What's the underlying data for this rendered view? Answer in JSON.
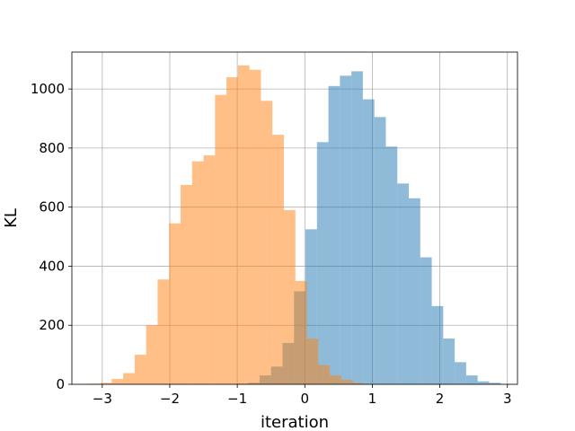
{
  "chart_data": {
    "type": "histogram",
    "xlabel": "iteration",
    "ylabel": "KL",
    "xlim": [
      -3.45,
      3.15
    ],
    "ylim": [
      0,
      1125
    ],
    "xticks": [
      -3,
      -2,
      -1,
      0,
      1,
      2,
      3
    ],
    "xtick_labels": [
      "−3",
      "−2",
      "−1",
      "0",
      "1",
      "2",
      "3"
    ],
    "yticks": [
      0,
      200,
      400,
      600,
      800,
      1000
    ],
    "ytick_labels": [
      "0",
      "200",
      "400",
      "600",
      "800",
      "1000"
    ],
    "grid": true,
    "legend": false,
    "overlap_alpha": 0.5,
    "series": [
      {
        "color": "#1f77b4",
        "bin_edges": [
          -1.01,
          -0.84,
          -0.67,
          -0.5,
          -0.33,
          -0.16,
          0.01,
          0.18,
          0.35,
          0.52,
          0.69,
          0.86,
          1.03,
          1.2,
          1.37,
          1.54,
          1.71,
          1.88,
          2.05,
          2.22,
          2.39,
          2.56,
          2.73,
          2.9
        ],
        "counts": [
          2,
          5,
          30,
          60,
          140,
          315,
          525,
          820,
          1010,
          1045,
          1060,
          965,
          905,
          805,
          680,
          630,
          430,
          265,
          155,
          75,
          30,
          10,
          5
        ]
      },
      {
        "color": "#ff7f0e",
        "bin_edges": [
          -3.2,
          -3.03,
          -2.86,
          -2.69,
          -2.52,
          -2.35,
          -2.18,
          -2.01,
          -1.84,
          -1.67,
          -1.5,
          -1.33,
          -1.16,
          -0.99,
          -0.82,
          -0.65,
          -0.48,
          -0.31,
          -0.14,
          0.03,
          0.2,
          0.37,
          0.54,
          0.71,
          0.86
        ],
        "counts": [
          2,
          5,
          18,
          38,
          100,
          200,
          355,
          545,
          675,
          755,
          775,
          980,
          1040,
          1080,
          1065,
          960,
          845,
          590,
          350,
          155,
          65,
          30,
          15,
          5
        ]
      }
    ]
  }
}
